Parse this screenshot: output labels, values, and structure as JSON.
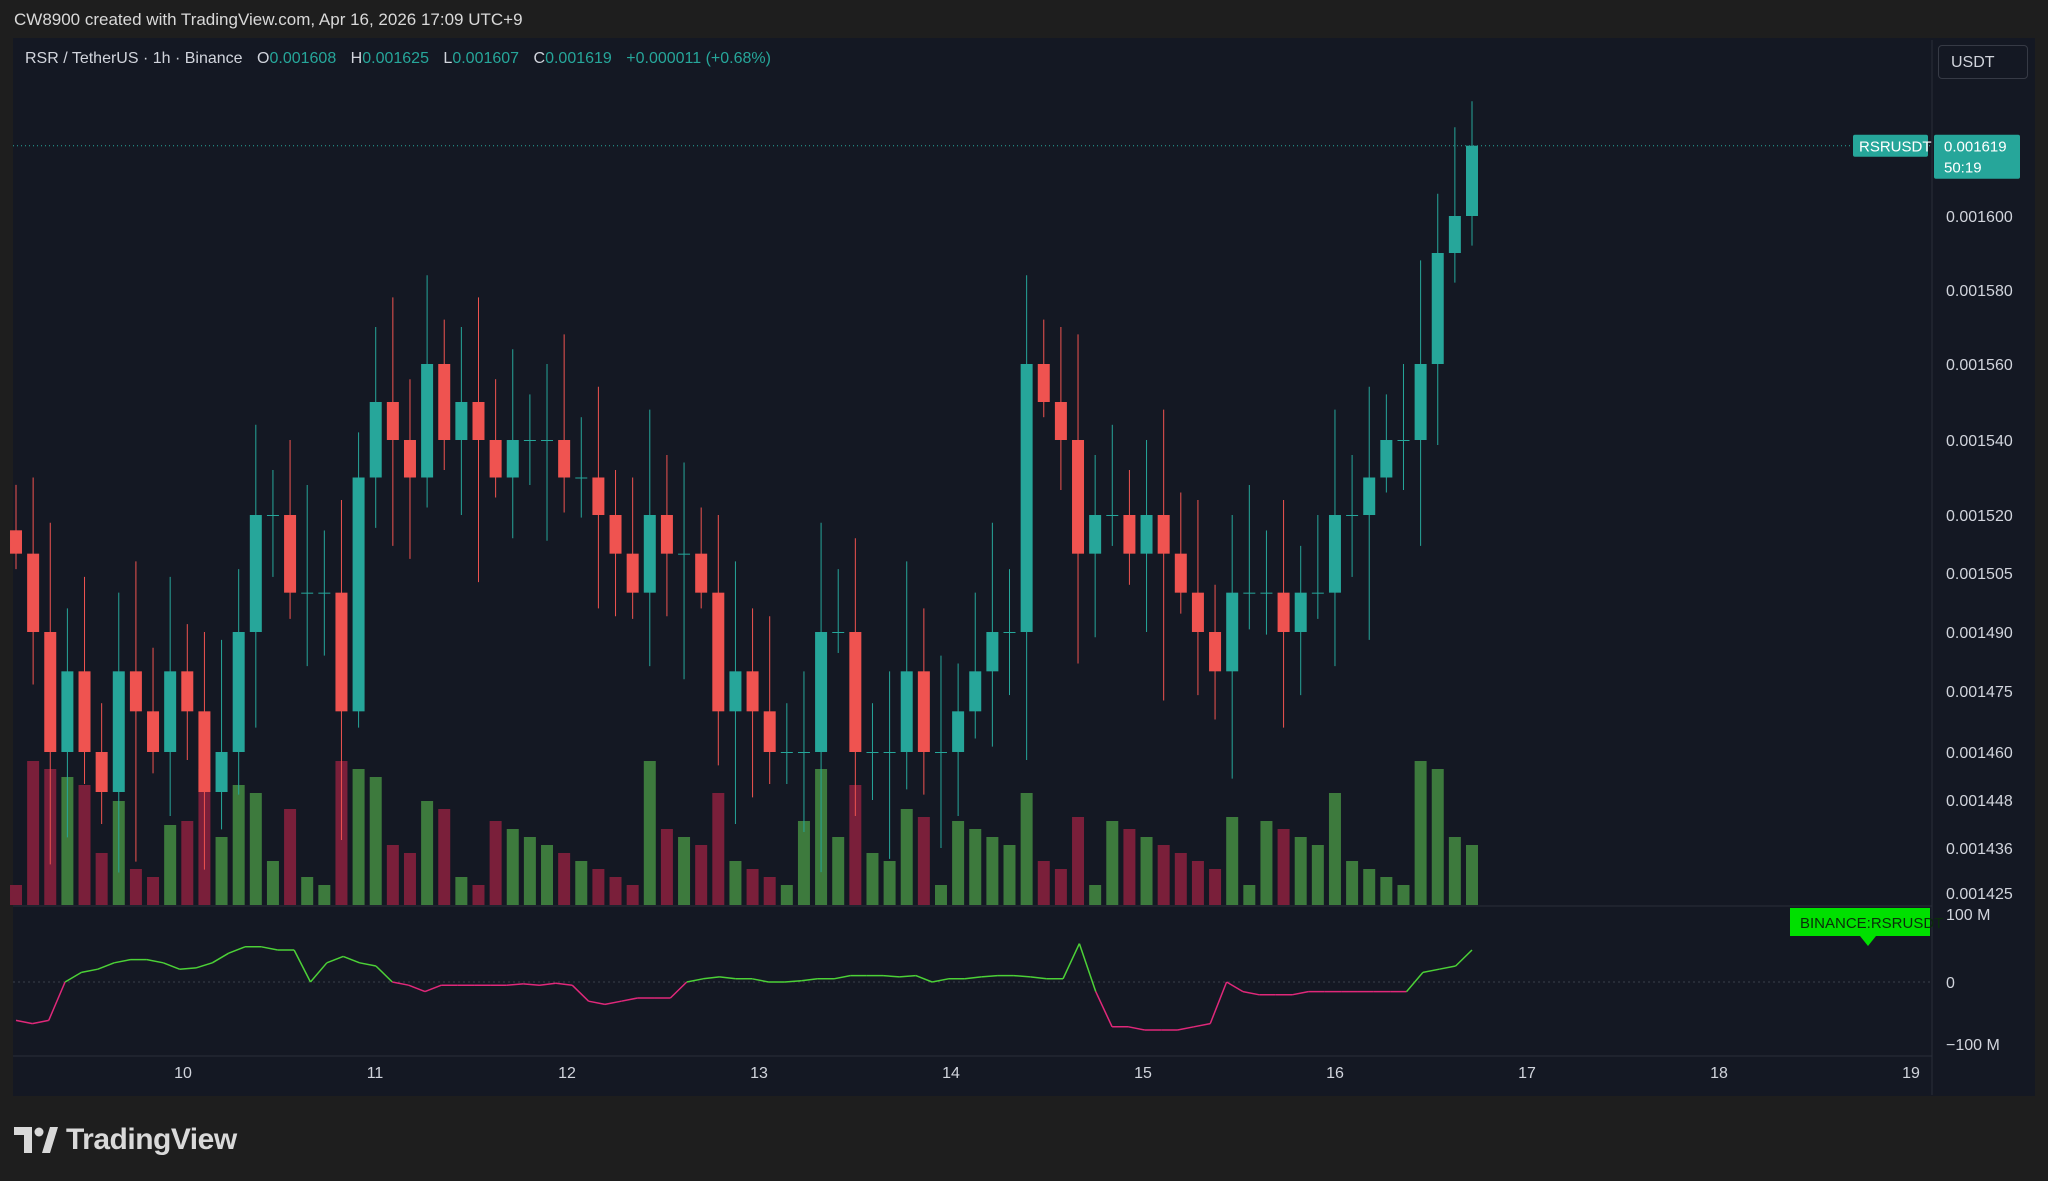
{
  "header": {
    "creator_line": "CW8900 created with TradingView.com, Apr 16, 2026 17:09 UTC+9"
  },
  "legend": {
    "symbol": "RSR / TetherUS · 1h · Binance",
    "open_label": "O",
    "open": "0.001608",
    "high_label": "H",
    "high": "0.001625",
    "low_label": "L",
    "low": "0.001607",
    "close_label": "C",
    "close": "0.001619",
    "change": "+0.000011 (+0.68%)"
  },
  "currency_button": "USDT",
  "price_tag": {
    "symbol": "RSRUSDT",
    "price": "0.001619",
    "countdown": "50:19"
  },
  "indicator_tag": {
    "label": "BINANCE:RSRUSDT"
  },
  "brand": {
    "name": "TradingView"
  },
  "colors": {
    "up": "#26a69a",
    "down": "#ef5350",
    "vol_up": "#3d7a3d",
    "vol_down": "#7a1f3a",
    "osc_up": "#4cd137",
    "osc_down": "#e0287a",
    "background": "#141823"
  },
  "chart_data": {
    "type": "candlestick",
    "symbol": "RSRUSDT",
    "interval": "1h",
    "price_axis": {
      "ticks": [
        "0.001600",
        "0.001580",
        "0.001560",
        "0.001540",
        "0.001520",
        "0.001505",
        "0.001490",
        "0.001475",
        "0.001460",
        "0.001448",
        "0.001436",
        "0.001425"
      ],
      "scale": "log"
    },
    "x_axis": {
      "ticks": [
        "10",
        "11",
        "12",
        "13",
        "14",
        "15",
        "16",
        "17",
        "18",
        "19"
      ]
    },
    "last_price": 0.001619,
    "price_path": [
      [
        0,
        0.00151
      ],
      [
        2,
        0.00149
      ],
      [
        4,
        0.00146
      ],
      [
        6,
        0.00148
      ],
      [
        8,
        0.00146
      ],
      [
        10,
        0.00145
      ],
      [
        12,
        0.00148
      ],
      [
        14,
        0.00147
      ],
      [
        16,
        0.00146
      ],
      [
        18,
        0.00148
      ],
      [
        20,
        0.00147
      ],
      [
        22,
        0.00145
      ],
      [
        24,
        0.00146
      ],
      [
        26,
        0.00149
      ],
      [
        28,
        0.00152
      ],
      [
        30,
        0.00152
      ],
      [
        32,
        0.0015
      ],
      [
        34,
        0.0015
      ],
      [
        36,
        0.0015
      ],
      [
        38,
        0.00147
      ],
      [
        40,
        0.00153
      ],
      [
        42,
        0.00155
      ],
      [
        44,
        0.00154
      ],
      [
        46,
        0.00153
      ],
      [
        48,
        0.00156
      ],
      [
        50,
        0.00154
      ],
      [
        52,
        0.00155
      ],
      [
        54,
        0.00154
      ],
      [
        56,
        0.00153
      ],
      [
        58,
        0.00154
      ],
      [
        60,
        0.00154
      ],
      [
        62,
        0.00154
      ],
      [
        64,
        0.00153
      ],
      [
        66,
        0.00153
      ],
      [
        68,
        0.00152
      ],
      [
        70,
        0.00151
      ],
      [
        72,
        0.0015
      ],
      [
        74,
        0.00152
      ],
      [
        76,
        0.00151
      ],
      [
        78,
        0.00151
      ],
      [
        80,
        0.0015
      ],
      [
        82,
        0.00147
      ],
      [
        84,
        0.00148
      ],
      [
        86,
        0.00147
      ],
      [
        88,
        0.00146
      ],
      [
        90,
        0.00146
      ],
      [
        92,
        0.00146
      ],
      [
        94,
        0.00149
      ],
      [
        96,
        0.00149
      ],
      [
        98,
        0.00146
      ],
      [
        100,
        0.00146
      ],
      [
        102,
        0.00146
      ],
      [
        104,
        0.00148
      ],
      [
        106,
        0.00146
      ],
      [
        108,
        0.00146
      ],
      [
        110,
        0.00147
      ],
      [
        112,
        0.00148
      ],
      [
        114,
        0.00149
      ],
      [
        116,
        0.00149
      ],
      [
        118,
        0.00156
      ],
      [
        120,
        0.00155
      ],
      [
        122,
        0.00154
      ],
      [
        124,
        0.00151
      ],
      [
        126,
        0.00152
      ],
      [
        128,
        0.00152
      ],
      [
        130,
        0.00151
      ],
      [
        132,
        0.00152
      ],
      [
        134,
        0.00151
      ],
      [
        136,
        0.0015
      ],
      [
        138,
        0.00149
      ],
      [
        140,
        0.00148
      ],
      [
        142,
        0.0015
      ],
      [
        144,
        0.0015
      ],
      [
        146,
        0.0015
      ],
      [
        148,
        0.00149
      ],
      [
        150,
        0.0015
      ],
      [
        152,
        0.0015
      ],
      [
        154,
        0.00152
      ],
      [
        156,
        0.00152
      ],
      [
        158,
        0.00153
      ],
      [
        160,
        0.00154
      ],
      [
        162,
        0.00154
      ],
      [
        164,
        0.00156
      ],
      [
        166,
        0.00159
      ],
      [
        168,
        0.0016
      ],
      [
        170,
        0.001619
      ]
    ],
    "oscillator": {
      "axis_ticks": [
        "100 M",
        "0",
        "−100 M"
      ],
      "range": [
        -100,
        100
      ],
      "values": [
        -60,
        -65,
        -60,
        0,
        15,
        20,
        30,
        35,
        35,
        30,
        20,
        22,
        30,
        45,
        55,
        55,
        50,
        50,
        0,
        30,
        40,
        30,
        25,
        0,
        -5,
        -15,
        -5,
        -5,
        -5,
        -5,
        -5,
        -3,
        -5,
        -2,
        -5,
        -30,
        -35,
        -30,
        -25,
        -25,
        -25,
        0,
        5,
        8,
        5,
        5,
        0,
        0,
        2,
        5,
        5,
        10,
        10,
        10,
        8,
        10,
        0,
        5,
        5,
        8,
        10,
        10,
        8,
        5,
        5,
        60,
        -15,
        -70,
        -70,
        -75,
        -75,
        -75,
        -70,
        -65,
        0,
        -15,
        -20,
        -20,
        -20,
        -15,
        -15,
        -15,
        -15,
        -15,
        -15,
        -15,
        15,
        20,
        25,
        50
      ]
    }
  }
}
